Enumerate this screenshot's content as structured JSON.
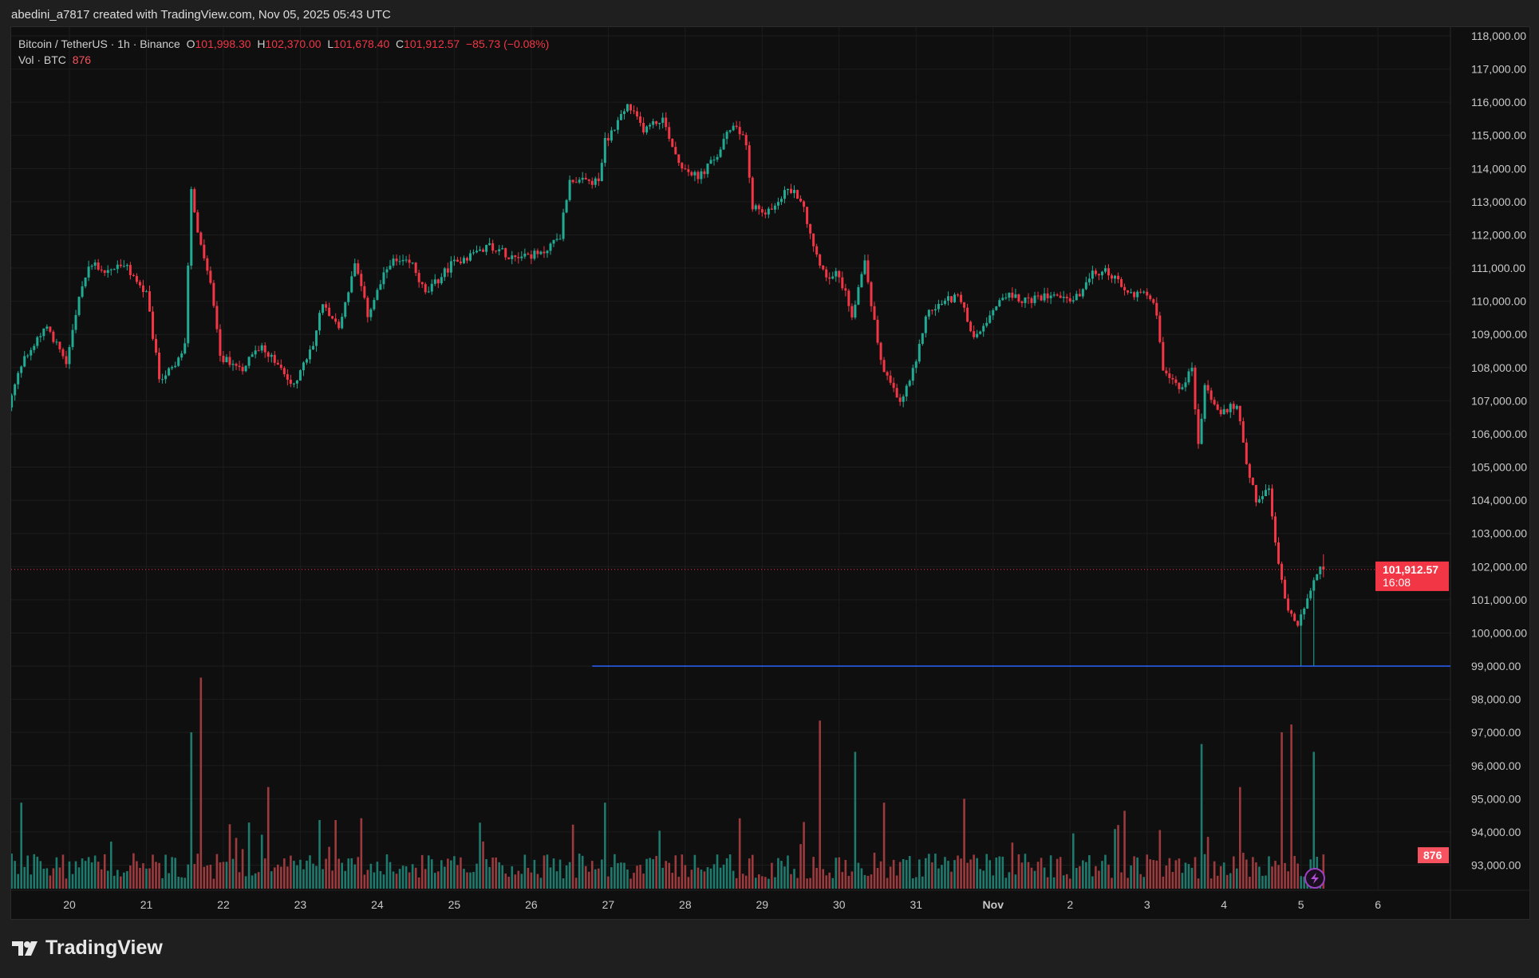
{
  "credit": "abedini_a7817 created with TradingView.com, Nov 05, 2025 05:43 UTC",
  "legend": {
    "symbol": "Bitcoin / TetherUS · 1h · Binance",
    "o_label": "O",
    "o": "101,998.30",
    "h_label": "H",
    "h": "102,370.00",
    "l_label": "L",
    "l": "101,678.40",
    "c_label": "C",
    "c": "101,912.57",
    "change": "−85.73 (−0.08%)",
    "vol_label": "Vol · BTC",
    "vol": "876"
  },
  "price_tag": {
    "price": "101,912.57",
    "countdown": "16:08"
  },
  "volume_tag": "876",
  "footer": {
    "logo": "TradingView"
  },
  "colors": {
    "up": "#22ab94",
    "down": "#f23645",
    "up_vol": "#1f7a6e",
    "down_vol": "#9c3a3e",
    "support": "#2962ff",
    "background": "#0f0f0f"
  },
  "chart_data": {
    "type": "candlestick",
    "title": "Bitcoin / TetherUS · 1h · Binance",
    "interval": "1h",
    "x_unit": "hours since Oct 20 00:00 UTC",
    "ylim": [
      92500,
      118300
    ],
    "y_ticks": [
      "118,000.00",
      "117,000.00",
      "116,000.00",
      "115,000.00",
      "114,000.00",
      "113,000.00",
      "112,000.00",
      "111,000.00",
      "110,000.00",
      "109,000.00",
      "108,000.00",
      "107,000.00",
      "106,000.00",
      "105,000.00",
      "104,000.00",
      "103,000.00",
      "102,000.00",
      "101,000.00",
      "100,000.00",
      "99,000.00",
      "98,000.00",
      "97,000.00",
      "96,000.00",
      "95,000.00",
      "94,000.00",
      "93,000.00"
    ],
    "y_tick_values": [
      118000,
      117000,
      116000,
      115000,
      114000,
      113000,
      112000,
      111000,
      110000,
      109000,
      108000,
      107000,
      106000,
      105000,
      104000,
      103000,
      102000,
      101000,
      100000,
      99000,
      98000,
      97000,
      96000,
      95000,
      94000,
      93000
    ],
    "x_ticks": [
      {
        "label": "20",
        "hour": 0
      },
      {
        "label": "21",
        "hour": 24
      },
      {
        "label": "22",
        "hour": 48
      },
      {
        "label": "23",
        "hour": 72
      },
      {
        "label": "24",
        "hour": 96
      },
      {
        "label": "25",
        "hour": 120
      },
      {
        "label": "26",
        "hour": 144
      },
      {
        "label": "27",
        "hour": 168
      },
      {
        "label": "28",
        "hour": 192
      },
      {
        "label": "29",
        "hour": 216
      },
      {
        "label": "30",
        "hour": 240
      },
      {
        "label": "31",
        "hour": 264
      },
      {
        "label": "Nov",
        "hour": 288
      },
      {
        "label": "2",
        "hour": 312
      },
      {
        "label": "3",
        "hour": 336
      },
      {
        "label": "4",
        "hour": 360
      },
      {
        "label": "5",
        "hour": 384
      },
      {
        "label": "6",
        "hour": 408
      }
    ],
    "price_path": [
      [
        -18,
        106800
      ],
      [
        -14,
        108100
      ],
      [
        -6,
        109300
      ],
      [
        0,
        108100
      ],
      [
        5,
        110500
      ],
      [
        8,
        111200
      ],
      [
        12,
        110900
      ],
      [
        18,
        111100
      ],
      [
        25,
        110200
      ],
      [
        29,
        107700
      ],
      [
        34,
        108000
      ],
      [
        37,
        108700
      ],
      [
        39,
        113300
      ],
      [
        41,
        112000
      ],
      [
        45,
        110500
      ],
      [
        48,
        108300
      ],
      [
        55,
        108000
      ],
      [
        61,
        108700
      ],
      [
        71,
        107400
      ],
      [
        77,
        108700
      ],
      [
        80,
        110000
      ],
      [
        85,
        109200
      ],
      [
        90,
        111100
      ],
      [
        94,
        109600
      ],
      [
        101,
        111200
      ],
      [
        108,
        111100
      ],
      [
        112,
        110200
      ],
      [
        120,
        111100
      ],
      [
        132,
        111700
      ],
      [
        138,
        111400
      ],
      [
        148,
        111400
      ],
      [
        154,
        112000
      ],
      [
        157,
        113700
      ],
      [
        161,
        113600
      ],
      [
        166,
        113600
      ],
      [
        168,
        114800
      ],
      [
        175,
        115900
      ],
      [
        180,
        115200
      ],
      [
        186,
        115500
      ],
      [
        191,
        114200
      ],
      [
        197,
        113700
      ],
      [
        203,
        114400
      ],
      [
        208,
        115400
      ],
      [
        212,
        114800
      ],
      [
        214,
        112900
      ],
      [
        218,
        112600
      ],
      [
        225,
        113400
      ],
      [
        229,
        113100
      ],
      [
        234,
        111400
      ],
      [
        237,
        110800
      ],
      [
        241,
        110800
      ],
      [
        245,
        109600
      ],
      [
        249,
        111200
      ],
      [
        254,
        108100
      ],
      [
        260,
        106900
      ],
      [
        265,
        108100
      ],
      [
        268,
        109600
      ],
      [
        274,
        110000
      ],
      [
        278,
        110200
      ],
      [
        283,
        108900
      ],
      [
        292,
        110200
      ],
      [
        301,
        110000
      ],
      [
        308,
        110300
      ],
      [
        314,
        110000
      ],
      [
        320,
        110800
      ],
      [
        325,
        110900
      ],
      [
        331,
        110200
      ],
      [
        337,
        110300
      ],
      [
        340,
        109600
      ],
      [
        342,
        107800
      ],
      [
        348,
        107400
      ],
      [
        351,
        108000
      ],
      [
        353,
        105600
      ],
      [
        355,
        107400
      ],
      [
        360,
        106600
      ],
      [
        365,
        106900
      ],
      [
        368,
        105000
      ],
      [
        371,
        104000
      ],
      [
        375,
        104300
      ],
      [
        378,
        102000
      ],
      [
        381,
        100700
      ],
      [
        384,
        100300
      ],
      [
        388,
        101300
      ],
      [
        391,
        101912.57
      ]
    ],
    "last": {
      "open": 101998.3,
      "high": 102370.0,
      "low": 101678.4,
      "close": 101912.57,
      "volume": 876
    },
    "volume_spikes": [
      [
        -15,
        2200
      ],
      [
        38,
        4000
      ],
      [
        41,
        5400
      ],
      [
        62,
        2600
      ],
      [
        167,
        2200
      ],
      [
        209,
        1800
      ],
      [
        234,
        4300
      ],
      [
        245,
        3500
      ],
      [
        254,
        2200
      ],
      [
        279,
        2300
      ],
      [
        340,
        1500
      ],
      [
        353,
        3700
      ],
      [
        365,
        2600
      ],
      [
        378,
        4000
      ],
      [
        381,
        4200
      ],
      [
        388,
        3500
      ]
    ],
    "support_line": {
      "price": 99000,
      "from_hour": 163
    },
    "current_price": 101912.57
  }
}
